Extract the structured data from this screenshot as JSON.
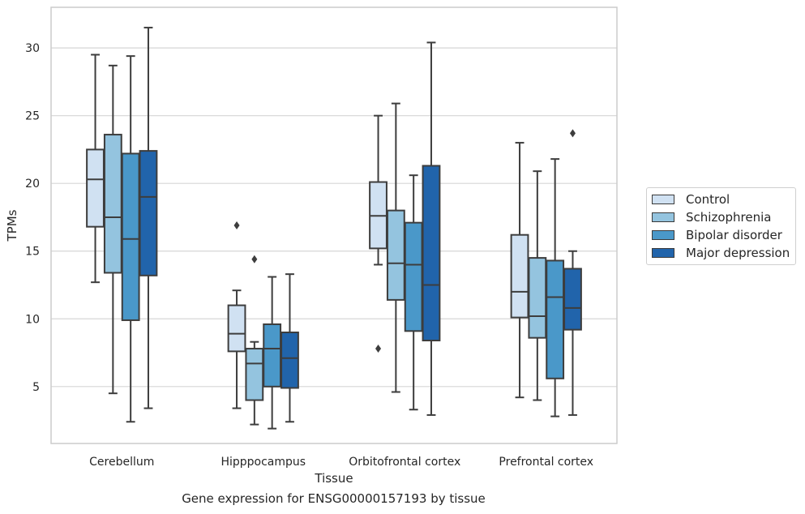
{
  "chart_data": {
    "type": "box",
    "xlabel": "Tissue",
    "ylabel": "TPMs",
    "caption": "Gene expression for ENSG00000157193 by tissue",
    "categories": [
      "Cerebellum",
      "Hipppocampus",
      "Orbitofrontal cortex",
      "Prefrontal cortex"
    ],
    "ylim": [
      0.8,
      33.0
    ],
    "yticks": [
      5,
      10,
      15,
      20,
      25,
      30
    ],
    "grid": true,
    "legend_position": "right",
    "series": [
      {
        "name": "Control",
        "color": "#d0e1f2",
        "boxes": [
          {
            "whisker_low": 12.7,
            "q1": 16.8,
            "median": 20.3,
            "q3": 22.5,
            "whisker_high": 29.5,
            "outliers": []
          },
          {
            "whisker_low": 3.4,
            "q1": 7.6,
            "median": 8.9,
            "q3": 11.0,
            "whisker_high": 12.1,
            "outliers": [
              16.9
            ]
          },
          {
            "whisker_low": 14.0,
            "q1": 15.2,
            "median": 17.6,
            "q3": 20.1,
            "whisker_high": 25.0,
            "outliers": [
              7.8
            ]
          },
          {
            "whisker_low": 4.2,
            "q1": 10.1,
            "median": 12.0,
            "q3": 16.2,
            "whisker_high": 23.0,
            "outliers": []
          }
        ]
      },
      {
        "name": "Schizophrenia",
        "color": "#94c4df",
        "boxes": [
          {
            "whisker_low": 4.5,
            "q1": 13.4,
            "median": 17.5,
            "q3": 23.6,
            "whisker_high": 28.7,
            "outliers": []
          },
          {
            "whisker_low": 2.2,
            "q1": 4.0,
            "median": 6.7,
            "q3": 7.8,
            "whisker_high": 8.3,
            "outliers": [
              14.4
            ]
          },
          {
            "whisker_low": 4.6,
            "q1": 11.4,
            "median": 14.1,
            "q3": 18.0,
            "whisker_high": 25.9,
            "outliers": []
          },
          {
            "whisker_low": 4.0,
            "q1": 8.6,
            "median": 10.2,
            "q3": 14.5,
            "whisker_high": 20.9,
            "outliers": []
          }
        ]
      },
      {
        "name": "Bipolar disorder",
        "color": "#4a98c9",
        "boxes": [
          {
            "whisker_low": 2.4,
            "q1": 9.9,
            "median": 15.9,
            "q3": 22.2,
            "whisker_high": 29.4,
            "outliers": []
          },
          {
            "whisker_low": 1.9,
            "q1": 5.0,
            "median": 7.8,
            "q3": 9.6,
            "whisker_high": 13.1,
            "outliers": []
          },
          {
            "whisker_low": 3.3,
            "q1": 9.1,
            "median": 14.0,
            "q3": 17.1,
            "whisker_high": 20.6,
            "outliers": []
          },
          {
            "whisker_low": 2.8,
            "q1": 5.6,
            "median": 11.6,
            "q3": 14.3,
            "whisker_high": 21.8,
            "outliers": []
          }
        ]
      },
      {
        "name": "Major depression",
        "color": "#2164ab",
        "boxes": [
          {
            "whisker_low": 3.4,
            "q1": 13.2,
            "median": 19.0,
            "q3": 22.4,
            "whisker_high": 31.5,
            "outliers": []
          },
          {
            "whisker_low": 2.4,
            "q1": 4.9,
            "median": 7.1,
            "q3": 9.0,
            "whisker_high": 13.3,
            "outliers": []
          },
          {
            "whisker_low": 2.9,
            "q1": 8.4,
            "median": 12.5,
            "q3": 21.3,
            "whisker_high": 30.4,
            "outliers": []
          },
          {
            "whisker_low": 2.9,
            "q1": 9.2,
            "median": 10.8,
            "q3": 13.7,
            "whisker_high": 15.0,
            "outliers": [
              23.7
            ]
          }
        ]
      }
    ]
  }
}
